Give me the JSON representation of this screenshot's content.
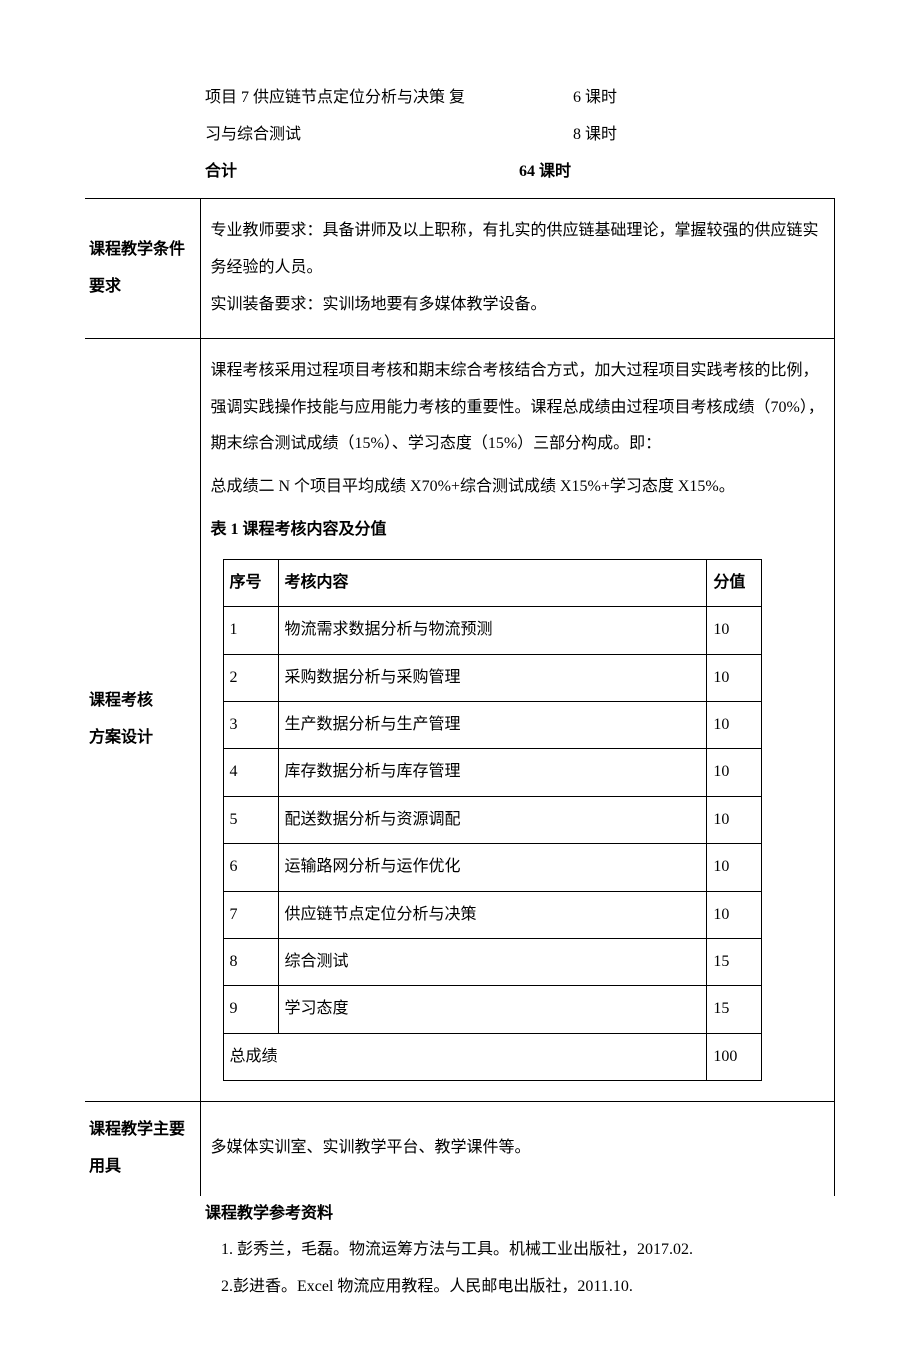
{
  "schedule": {
    "row1": {
      "label": "项目 7 供应链节点定位分析与决策  复",
      "hours": "6 课时"
    },
    "row2": {
      "label": "习与综合测试",
      "hours": "8 课时"
    },
    "total": {
      "label": "合计",
      "hours": "64 课时"
    }
  },
  "sections": {
    "teaching_conditions": {
      "label_line1": "课程教学条件",
      "label_line2": "要求",
      "p1": "专业教师要求：具备讲师及以上职称，有扎实的供应链基础理论，掌握较强的供应链实务经验的人员。",
      "p2": "实训装备要求：实训场地要有多媒体教学设备。"
    },
    "assessment": {
      "label_line1": "课程考核",
      "label_line2": "方案设计",
      "p1": "课程考核采用过程项目考核和期末综合考核结合方式，加大过程项目实践考核的比例，强调实践操作技能与应用能力考核的重要性。课程总成绩由过程项目考核成绩（70%），期末综合测试成绩（15%）、学习态度（15%）三部分构成。即：",
      "p2": "总成绩二 N 个项目平均成绩 X70%+综合测试成绩 X15%+学习态度 X15%。",
      "table_title": "表 1 课程考核内容及分值",
      "headers": {
        "seq": "序号",
        "content": "考核内容",
        "score": "分值"
      },
      "rows": [
        {
          "seq": "1",
          "content": "物流需求数据分析与物流预测",
          "score": "10"
        },
        {
          "seq": "2",
          "content": "采购数据分析与采购管理",
          "score": "10"
        },
        {
          "seq": "3",
          "content": "生产数据分析与生产管理",
          "score": "10"
        },
        {
          "seq": "4",
          "content": "库存数据分析与库存管理",
          "score": "10"
        },
        {
          "seq": "5",
          "content": "配送数据分析与资源调配",
          "score": "10"
        },
        {
          "seq": "6",
          "content": "运输路网分析与运作优化",
          "score": "10"
        },
        {
          "seq": "7",
          "content": "供应链节点定位分析与决策",
          "score": "10"
        },
        {
          "seq": "8",
          "content": "综合测试",
          "score": "15"
        },
        {
          "seq": "9",
          "content": "学习态度",
          "score": "15"
        }
      ],
      "total": {
        "label": "总成绩",
        "score": "100"
      }
    },
    "tools": {
      "label_line1": "课程教学主要",
      "label_line2": "用具",
      "content": "多媒体实训室、实训教学平台、教学课件等。"
    }
  },
  "references": {
    "title": "课程教学参考资料",
    "items": [
      "1. 彭秀兰，毛磊。物流运筹方法与工具。机械工业出版社，2017.02.",
      "2.彭进香。Excel 物流应用教程。人民邮电出版社，2011.10."
    ]
  }
}
